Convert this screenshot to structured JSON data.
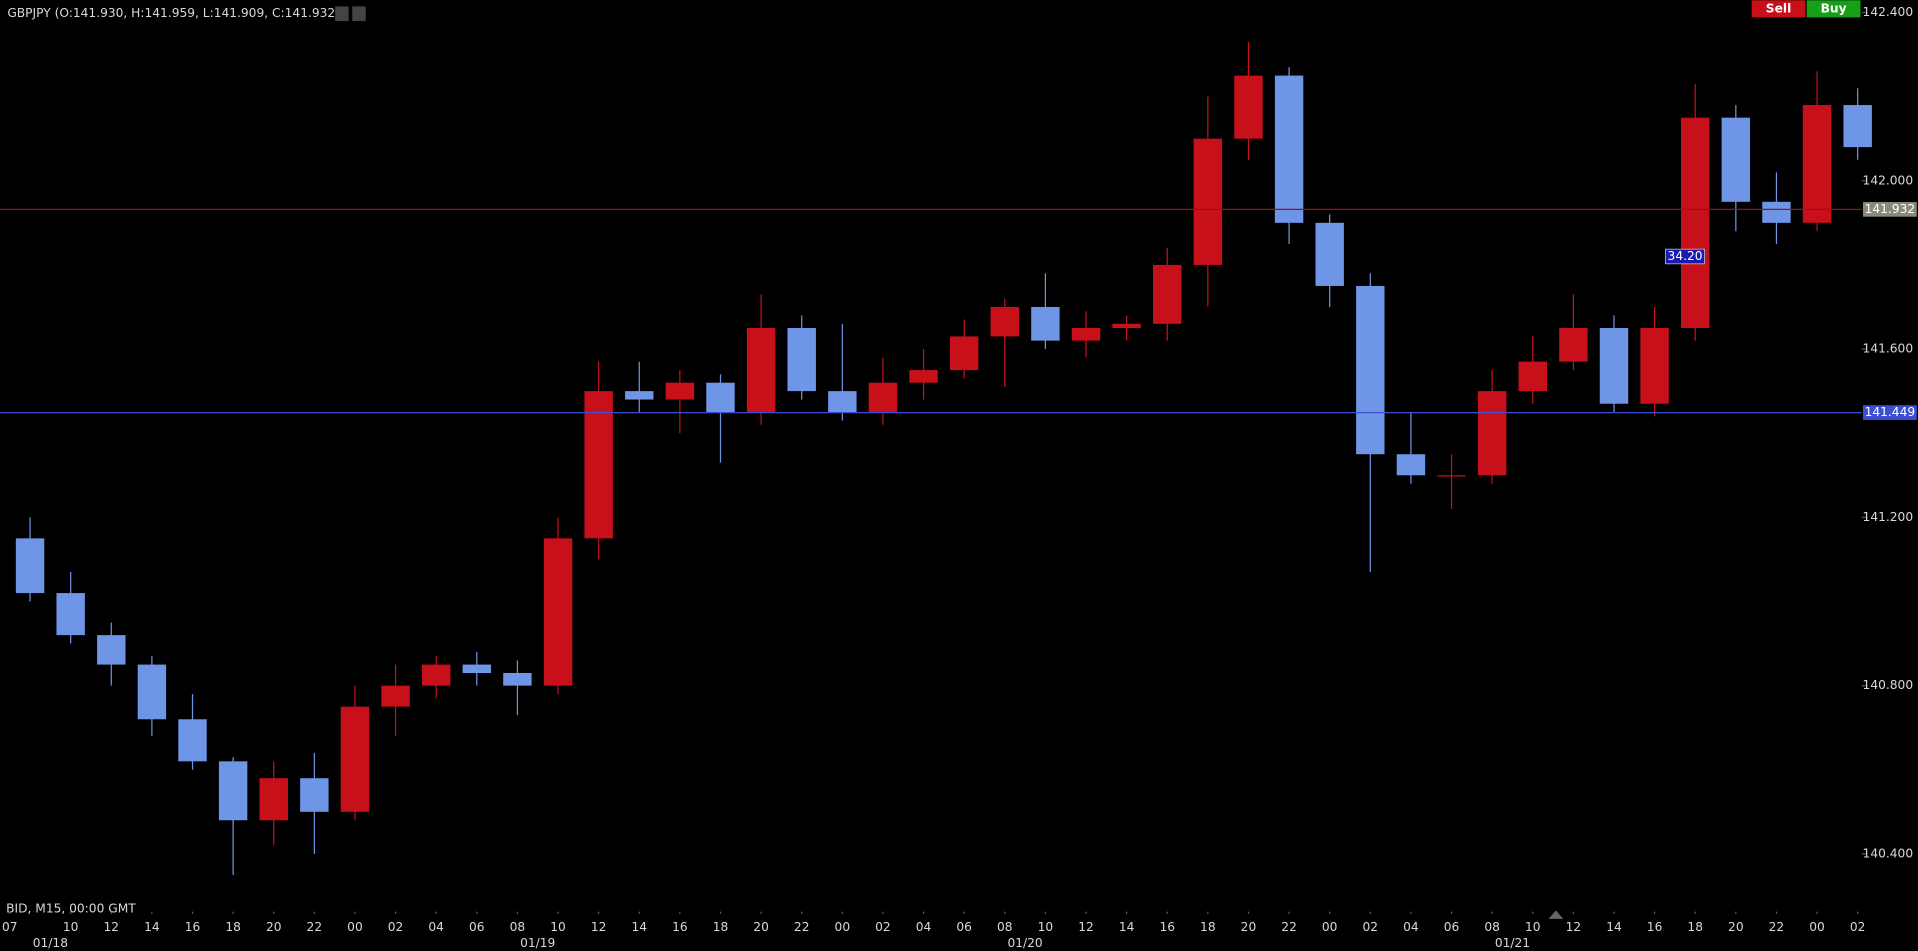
{
  "chart_data": {
    "type": "candlestick",
    "title": "GBPJPY (O:141.930, H:141.959, L:141.909, C:141.932)",
    "subtitle": "BID, M15, 00:00 GMT",
    "buttons": [
      "Sell",
      "Buy"
    ],
    "up_color": "#c8101a",
    "down_color": "#6f95e6",
    "x": [
      0,
      2,
      4,
      6,
      8,
      10,
      12,
      14,
      16,
      18,
      20,
      22,
      24,
      26,
      28,
      30,
      32,
      34,
      36,
      38,
      40,
      42,
      44,
      46,
      48,
      50,
      52,
      54,
      56,
      58,
      60,
      62,
      64,
      66,
      68,
      70,
      72,
      74,
      76,
      78,
      80,
      82,
      84,
      86,
      88,
      90
    ],
    "open": [
      141.15,
      141.02,
      140.92,
      140.85,
      140.72,
      140.62,
      140.48,
      140.58,
      140.5,
      140.75,
      140.8,
      140.85,
      140.83,
      140.8,
      141.15,
      141.5,
      141.48,
      141.52,
      141.45,
      141.65,
      141.5,
      141.45,
      141.52,
      141.55,
      141.63,
      141.7,
      141.62,
      141.65,
      141.66,
      141.8,
      142.1,
      142.25,
      141.9,
      141.75,
      141.35,
      141.3,
      141.3,
      141.5,
      141.57,
      141.65,
      141.47,
      141.65,
      142.15,
      141.95,
      141.9,
      142.18
    ],
    "high": [
      141.2,
      141.07,
      140.95,
      140.87,
      140.78,
      140.63,
      140.62,
      140.64,
      140.8,
      140.85,
      140.87,
      140.88,
      140.86,
      141.2,
      141.57,
      141.57,
      141.55,
      141.54,
      141.73,
      141.68,
      141.66,
      141.58,
      141.6,
      141.67,
      141.72,
      141.78,
      141.69,
      141.68,
      141.84,
      142.2,
      142.33,
      142.27,
      141.92,
      141.78,
      141.45,
      141.35,
      141.55,
      141.63,
      141.73,
      141.68,
      141.7,
      142.23,
      142.18,
      142.02,
      142.26,
      142.22
    ],
    "low": [
      141.0,
      140.9,
      140.8,
      140.68,
      140.6,
      140.35,
      140.42,
      140.4,
      140.48,
      140.68,
      140.77,
      140.8,
      140.73,
      140.78,
      141.1,
      141.45,
      141.4,
      141.33,
      141.42,
      141.48,
      141.43,
      141.42,
      141.48,
      141.53,
      141.51,
      141.6,
      141.58,
      141.62,
      141.62,
      141.7,
      142.05,
      141.85,
      141.7,
      141.07,
      141.28,
      141.22,
      141.28,
      141.47,
      141.55,
      141.45,
      141.44,
      141.62,
      141.88,
      141.85,
      141.88,
      142.05
    ],
    "close": [
      141.02,
      140.92,
      140.85,
      140.72,
      140.62,
      140.48,
      140.58,
      140.5,
      140.75,
      140.8,
      140.85,
      140.83,
      140.8,
      141.15,
      141.5,
      141.48,
      141.52,
      141.45,
      141.65,
      141.5,
      141.45,
      141.52,
      141.55,
      141.63,
      141.7,
      141.62,
      141.65,
      141.66,
      141.8,
      142.1,
      142.25,
      141.9,
      141.75,
      141.35,
      141.3,
      141.3,
      141.5,
      141.57,
      141.65,
      141.47,
      141.65,
      142.15,
      141.95,
      141.9,
      142.18,
      142.08
    ],
    "xlim": [
      -0.48,
      91.2
    ],
    "ylim": [
      140.292,
      142.429
    ],
    "yticks": [
      {
        "value": 140.4,
        "label": "140.400"
      },
      {
        "value": 140.8,
        "label": "140.800"
      },
      {
        "value": 141.2,
        "label": "141.200"
      },
      {
        "value": 141.6,
        "label": "141.600"
      },
      {
        "value": 142.0,
        "label": "142.000"
      },
      {
        "value": 142.4,
        "label": "142.400"
      }
    ],
    "xticks": [
      {
        "value": 0,
        "label": "07"
      },
      {
        "value": 3,
        "label": "10"
      },
      {
        "value": 5,
        "label": "12"
      },
      {
        "value": 7,
        "label": "14"
      },
      {
        "value": 9,
        "label": "16"
      },
      {
        "value": 11,
        "label": "18"
      },
      {
        "value": 13,
        "label": "20"
      },
      {
        "value": 15,
        "label": "22"
      },
      {
        "value": 17,
        "label": "00"
      },
      {
        "value": 19,
        "label": "02"
      },
      {
        "value": 21,
        "label": "04"
      },
      {
        "value": 23,
        "label": "06"
      },
      {
        "value": 25,
        "label": "08"
      },
      {
        "value": 27,
        "label": "10"
      },
      {
        "value": 29,
        "label": "12"
      },
      {
        "value": 31,
        "label": "14"
      },
      {
        "value": 33,
        "label": "16"
      },
      {
        "value": 35,
        "label": "18"
      },
      {
        "value": 37,
        "label": "20"
      },
      {
        "value": 39,
        "label": "22"
      },
      {
        "value": 41,
        "label": "00"
      },
      {
        "value": 43,
        "label": "02"
      },
      {
        "value": 45,
        "label": "04"
      },
      {
        "value": 47,
        "label": "06"
      },
      {
        "value": 49,
        "label": "08"
      },
      {
        "value": 51,
        "label": "10"
      },
      {
        "value": 53,
        "label": "12"
      },
      {
        "value": 55,
        "label": "14"
      },
      {
        "value": 57,
        "label": "16"
      },
      {
        "value": 59,
        "label": "18"
      },
      {
        "value": 61,
        "label": "20"
      },
      {
        "value": 63,
        "label": "22"
      },
      {
        "value": 65,
        "label": "00"
      },
      {
        "value": 67,
        "label": "02"
      },
      {
        "value": 69,
        "label": "04"
      },
      {
        "value": 71,
        "label": "06"
      },
      {
        "value": 73,
        "label": "08"
      },
      {
        "value": 75,
        "label": "10"
      },
      {
        "value": 77,
        "label": "12"
      },
      {
        "value": 79,
        "label": "14"
      },
      {
        "value": 81,
        "label": "16"
      },
      {
        "value": 83,
        "label": "18"
      },
      {
        "value": 85,
        "label": "20"
      },
      {
        "value": 87,
        "label": "22"
      },
      {
        "value": 89,
        "label": "00"
      },
      {
        "value": 91,
        "label": "02"
      }
    ],
    "date_labels": [
      {
        "value": 2,
        "label": "01/18"
      },
      {
        "value": 26,
        "label": "01/19"
      },
      {
        "value": 50,
        "label": "01/20"
      },
      {
        "value": 74,
        "label": "01/21"
      }
    ],
    "price_lines": [
      {
        "value": 141.932,
        "color": "#a01010",
        "label_color": "#8a8a7a"
      },
      {
        "value": 141.449,
        "color": "#3c4fd0",
        "label_color": "#3c4fd0"
      }
    ],
    "annotation": {
      "text": "34.20",
      "x": 82.5,
      "y": 141.82
    }
  }
}
